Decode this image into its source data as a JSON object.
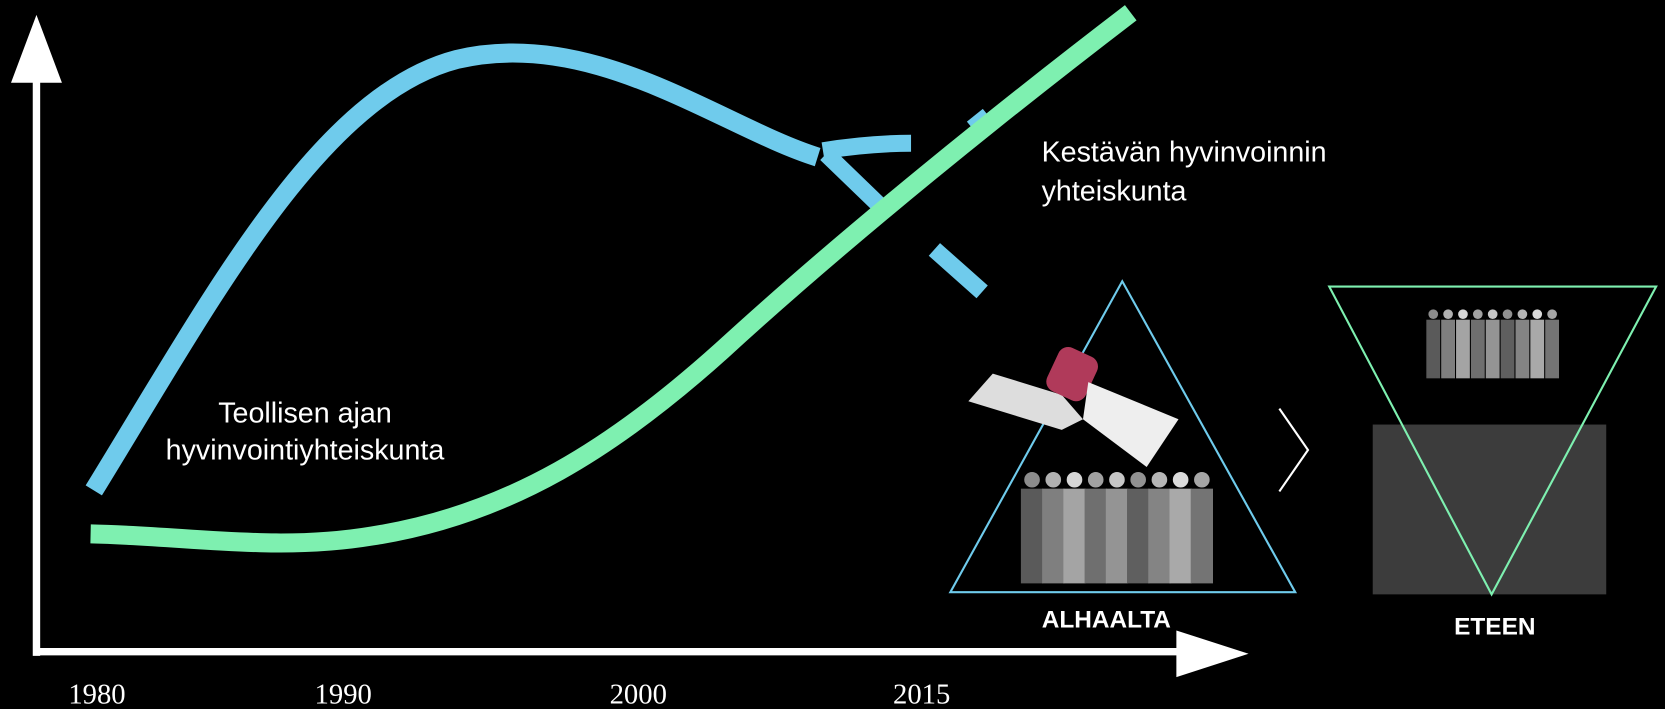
{
  "axis": {
    "ticks": [
      "1980",
      "1990",
      "2000",
      "2015"
    ]
  },
  "labels": {
    "industrial": [
      "Teollisen ajan",
      "hyvinvointiyhteiskunta"
    ],
    "sustainable": [
      "Kestävän hyvinvoinnin",
      "yhteiskunta"
    ]
  },
  "triangles": [
    {
      "label": "ALHAALTA"
    },
    {
      "label": "ETEEN"
    }
  ]
}
